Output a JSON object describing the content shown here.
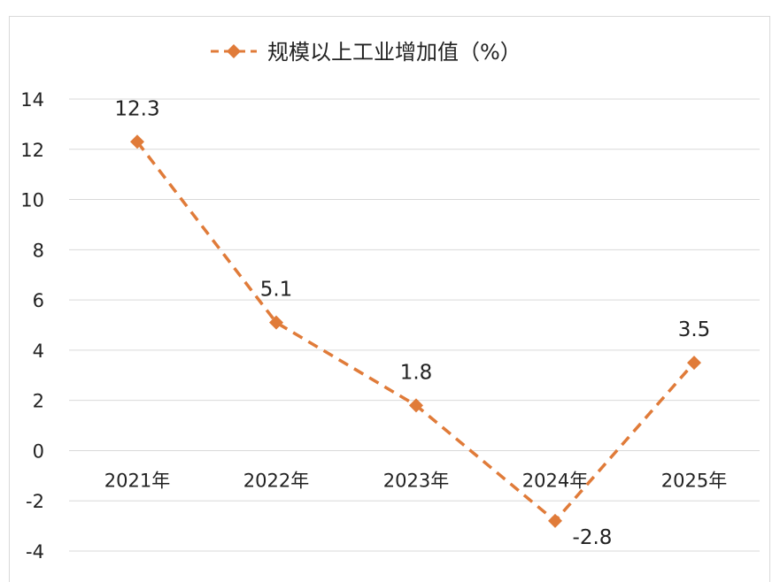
{
  "chart_data": {
    "type": "line",
    "legend": {
      "position": "top",
      "label": "规模以上工业增加值（%）"
    },
    "categories": [
      "2021年",
      "2022年",
      "2023年",
      "2024年",
      "2025年"
    ],
    "series": [
      {
        "name": "规模以上工业增加值（%）",
        "values": [
          12.3,
          5.1,
          1.8,
          -2.8,
          3.5
        ],
        "data_labels": [
          "12.3",
          "5.1",
          "1.8",
          "-2.8",
          "3.5"
        ],
        "line_style": "dashed",
        "color": "#E07B39"
      }
    ],
    "y_ticks": [
      "14",
      "12",
      "10",
      "8",
      "6",
      "4",
      "2",
      "0",
      "-2",
      "-4"
    ],
    "ylim": [
      -4,
      14
    ],
    "grid": true
  }
}
